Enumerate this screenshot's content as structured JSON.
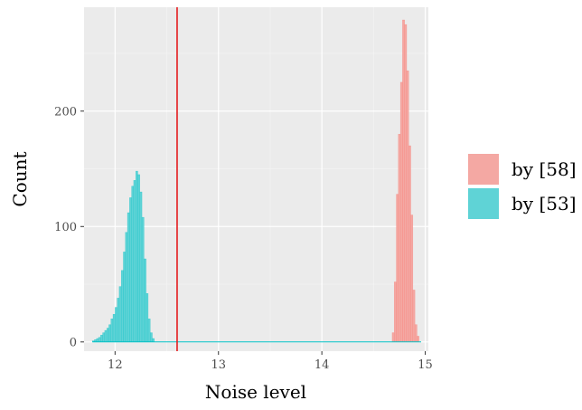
{
  "chart_data": {
    "type": "histogram",
    "xlabel": "Noise level",
    "ylabel": "Count",
    "xlim": [
      11.7,
      15.03
    ],
    "ylim": [
      -8,
      290
    ],
    "x_ticks": [
      12,
      13,
      14,
      15
    ],
    "y_ticks": [
      0,
      100,
      200
    ],
    "grid": true,
    "bin_width": 0.02,
    "vline": {
      "x": 12.6,
      "color": "#e41a1c"
    },
    "legend": {
      "placement": "right"
    },
    "series": [
      {
        "name": "by [58]",
        "color": "#f8766d",
        "fill": "#f4a8a3",
        "bins": [
          {
            "x": 14.69,
            "count": 8
          },
          {
            "x": 14.71,
            "count": 52
          },
          {
            "x": 14.73,
            "count": 128
          },
          {
            "x": 14.75,
            "count": 180
          },
          {
            "x": 14.77,
            "count": 225
          },
          {
            "x": 14.79,
            "count": 279
          },
          {
            "x": 14.81,
            "count": 275
          },
          {
            "x": 14.83,
            "count": 235
          },
          {
            "x": 14.85,
            "count": 170
          },
          {
            "x": 14.87,
            "count": 110
          },
          {
            "x": 14.89,
            "count": 45
          },
          {
            "x": 14.91,
            "count": 15
          },
          {
            "x": 14.93,
            "count": 5
          }
        ]
      },
      {
        "name": "by [53]",
        "color": "#00bfc4",
        "fill": "#5fd3d6",
        "bins": [
          {
            "x": 11.79,
            "count": 1
          },
          {
            "x": 11.81,
            "count": 2
          },
          {
            "x": 11.83,
            "count": 3
          },
          {
            "x": 11.85,
            "count": 4
          },
          {
            "x": 11.87,
            "count": 6
          },
          {
            "x": 11.89,
            "count": 8
          },
          {
            "x": 11.91,
            "count": 10
          },
          {
            "x": 11.93,
            "count": 12
          },
          {
            "x": 11.95,
            "count": 15
          },
          {
            "x": 11.97,
            "count": 20
          },
          {
            "x": 11.99,
            "count": 24
          },
          {
            "x": 12.01,
            "count": 30
          },
          {
            "x": 12.03,
            "count": 38
          },
          {
            "x": 12.05,
            "count": 48
          },
          {
            "x": 12.07,
            "count": 62
          },
          {
            "x": 12.09,
            "count": 78
          },
          {
            "x": 12.11,
            "count": 95
          },
          {
            "x": 12.13,
            "count": 112
          },
          {
            "x": 12.15,
            "count": 125
          },
          {
            "x": 12.17,
            "count": 135
          },
          {
            "x": 12.19,
            "count": 140
          },
          {
            "x": 12.21,
            "count": 148
          },
          {
            "x": 12.23,
            "count": 145
          },
          {
            "x": 12.25,
            "count": 130
          },
          {
            "x": 12.27,
            "count": 108
          },
          {
            "x": 12.29,
            "count": 72
          },
          {
            "x": 12.31,
            "count": 42
          },
          {
            "x": 12.33,
            "count": 20
          },
          {
            "x": 12.35,
            "count": 8
          },
          {
            "x": 12.37,
            "count": 3
          }
        ]
      }
    ]
  }
}
